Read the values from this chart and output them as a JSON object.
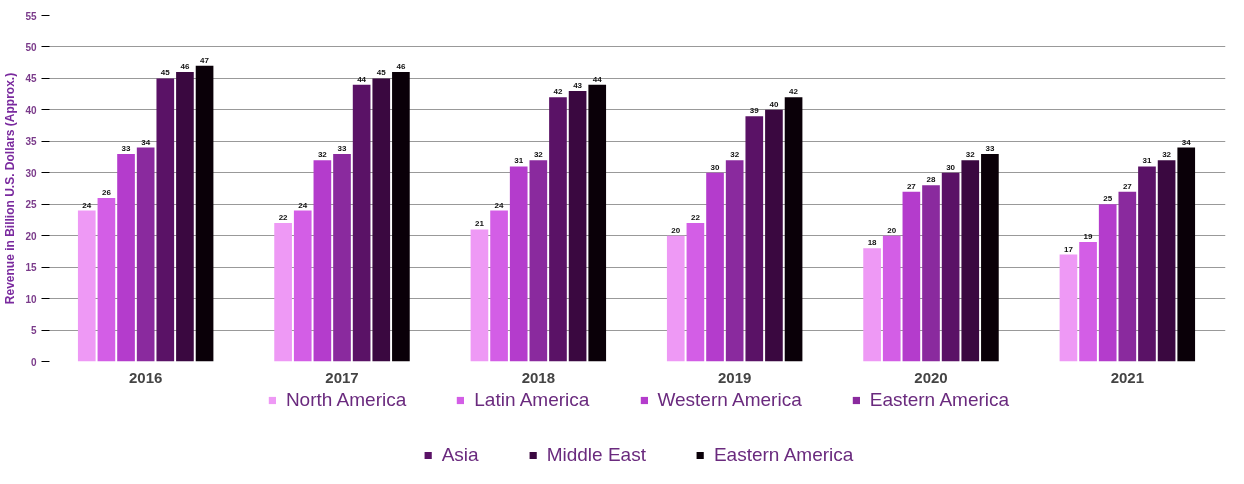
{
  "chart_data": {
    "type": "bar",
    "ylabel": "Revenue in Billion U.S. Dollars (Approx.)",
    "categories": [
      "2016",
      "2017",
      "2018",
      "2019",
      "2020",
      "2021"
    ],
    "series": [
      {
        "name": "North America",
        "color": "#ee99f5",
        "values": [
          24,
          22,
          21,
          20,
          18,
          17
        ]
      },
      {
        "name": "Latin America",
        "color": "#d35ee6",
        "values": [
          26,
          24,
          24,
          22,
          20,
          19
        ]
      },
      {
        "name": "Western America",
        "color": "#b43ccc",
        "values": [
          33,
          32,
          31,
          30,
          27,
          25
        ]
      },
      {
        "name": "Eastern America",
        "color": "#8a2a9e",
        "values": [
          34,
          33,
          32,
          32,
          28,
          27
        ]
      },
      {
        "name": "Asia",
        "color": "#5a1266",
        "values": [
          45,
          44,
          42,
          39,
          30,
          31
        ]
      },
      {
        "name": "Middle East",
        "color": "#3a0840",
        "values": [
          46,
          45,
          43,
          40,
          32,
          32
        ]
      },
      {
        "name": "Eastern America",
        "color": "#0a0008",
        "values": [
          47,
          46,
          44,
          42,
          33,
          34
        ]
      }
    ],
    "ylim": [
      0,
      55
    ],
    "yticks": [
      0,
      5,
      10,
      15,
      20,
      25,
      30,
      35,
      40,
      45,
      50,
      55
    ],
    "grid": "y",
    "data_labels": true,
    "legend": "bottom"
  }
}
